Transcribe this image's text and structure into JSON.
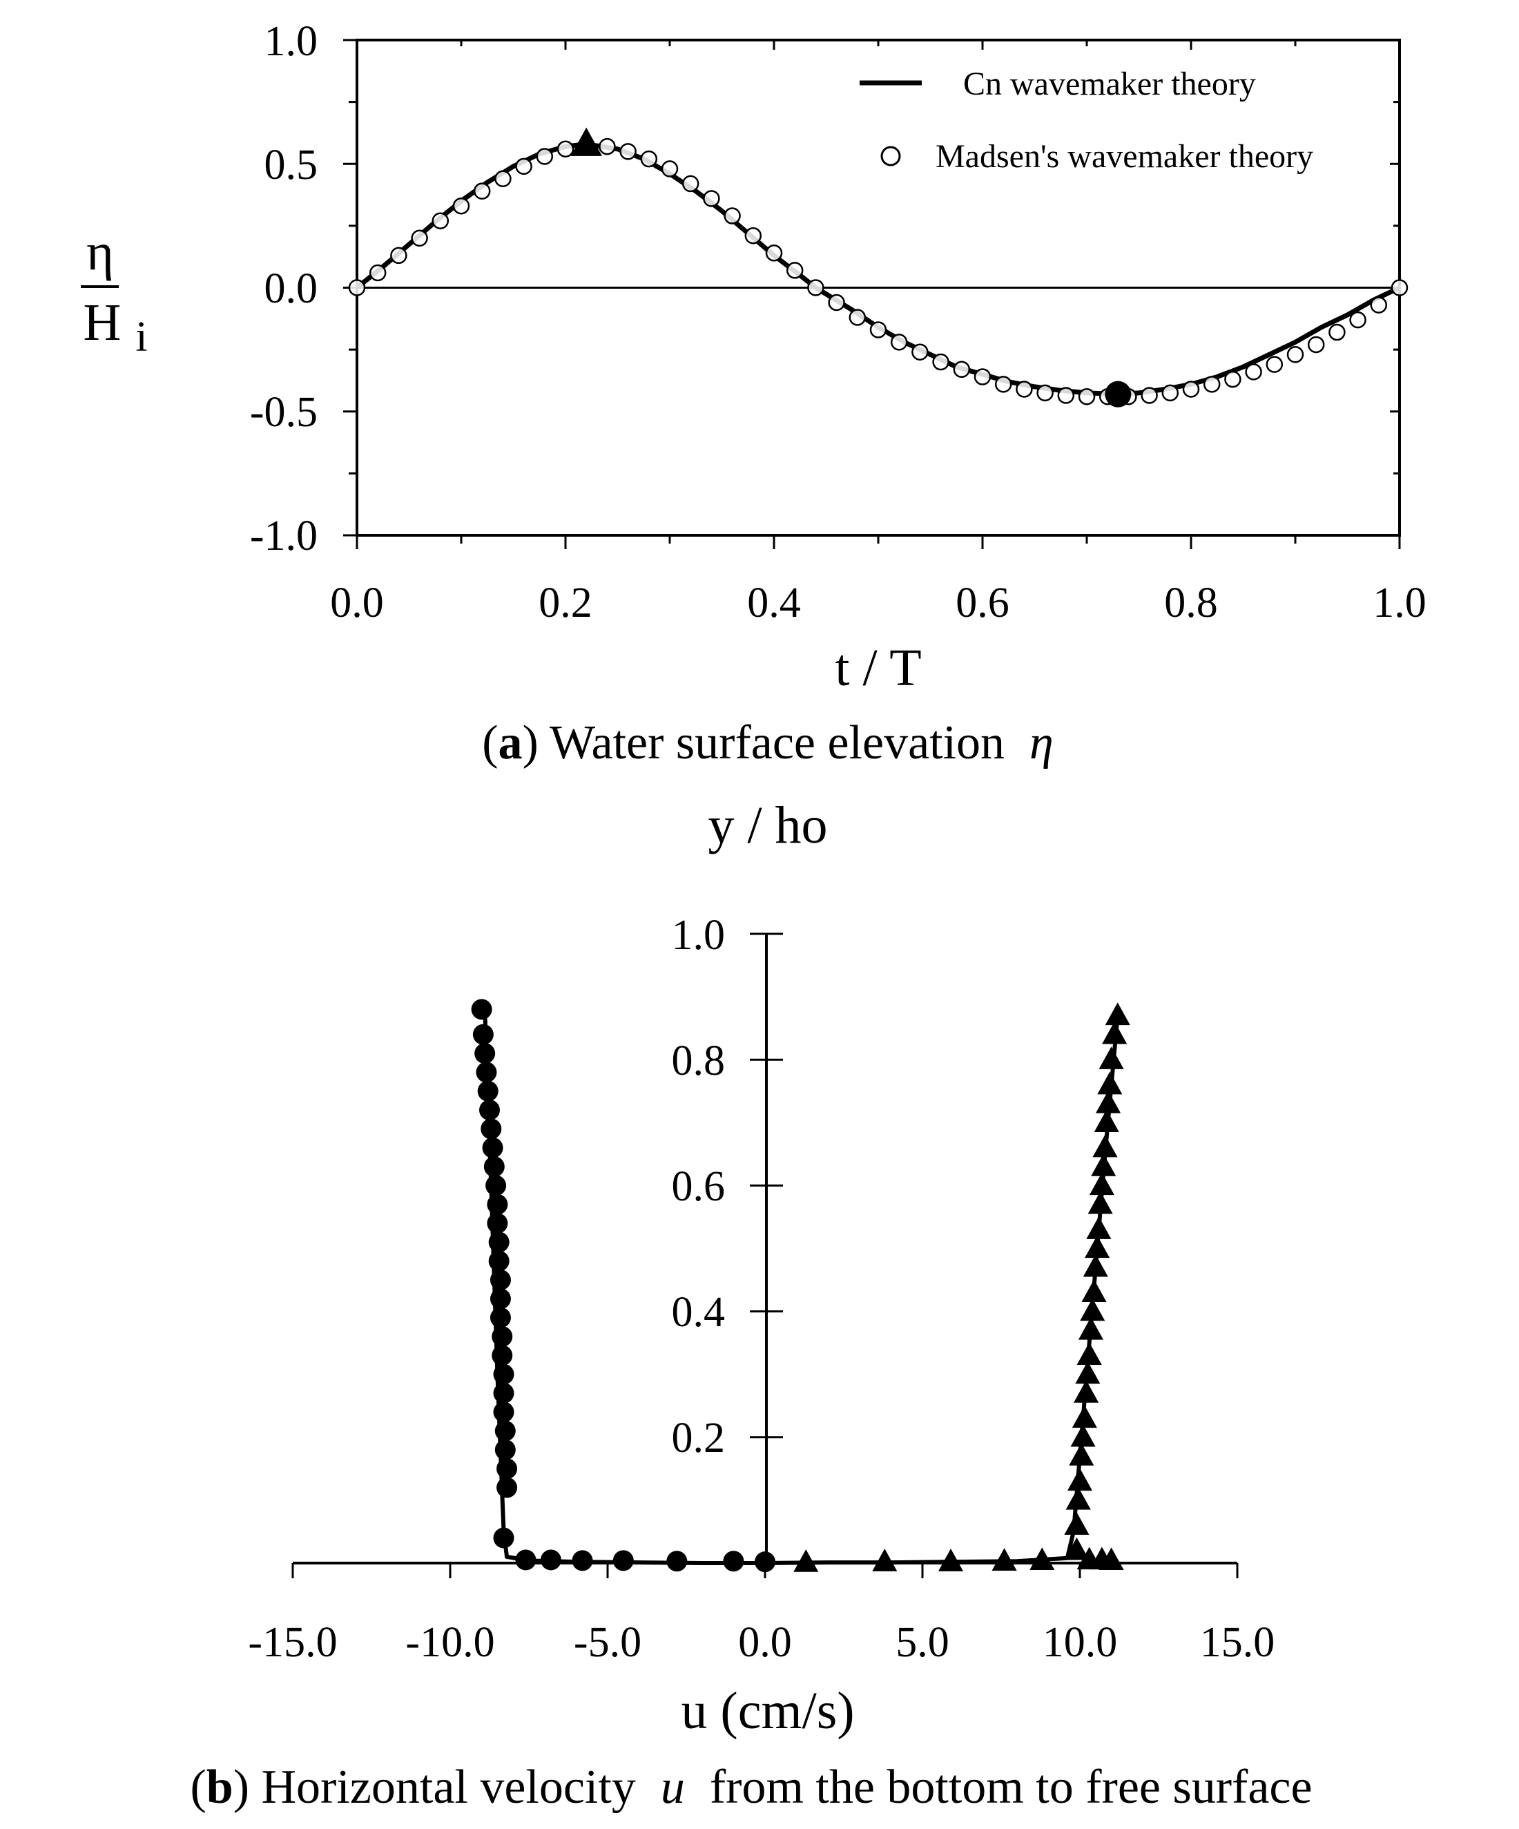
{
  "chart_data": [
    {
      "type": "line",
      "panel": "a",
      "caption": {
        "label": "a",
        "text": ") Water surface elevation",
        "symbol": "η"
      },
      "xlabel": "t / T",
      "ylabel": {
        "top": "η",
        "bottom": "H",
        "subscript": "i"
      },
      "xlim": [
        0,
        1
      ],
      "ylim": [
        -1,
        1
      ],
      "x_ticks": [
        "0.0",
        "0.2",
        "0.4",
        "0.6",
        "0.8",
        "1.0"
      ],
      "y_ticks": [
        "1.0",
        "0.5",
        "0.0",
        "-0.5",
        "-1.0"
      ],
      "zero_line": true,
      "legend": {
        "position": "top-right",
        "entries": [
          {
            "name": "Cn wavemaker theory",
            "style": "solid-line"
          },
          {
            "name": "Madsen's wavemaker theory",
            "style": "open-circle"
          }
        ]
      },
      "series": [
        {
          "name": "Cn wavemaker theory",
          "style": "line",
          "x": [
            0.0,
            0.025,
            0.05,
            0.075,
            0.1,
            0.125,
            0.15,
            0.175,
            0.2,
            0.22,
            0.25,
            0.275,
            0.3,
            0.325,
            0.35,
            0.375,
            0.4,
            0.425,
            0.44,
            0.475,
            0.5,
            0.525,
            0.55,
            0.575,
            0.6,
            0.625,
            0.65,
            0.675,
            0.7,
            0.73,
            0.75,
            0.775,
            0.8,
            0.825,
            0.85,
            0.875,
            0.9,
            0.925,
            0.95,
            0.975,
            1.0
          ],
          "y": [
            0.0,
            0.085,
            0.175,
            0.265,
            0.35,
            0.425,
            0.49,
            0.54,
            0.57,
            0.58,
            0.56,
            0.52,
            0.46,
            0.39,
            0.31,
            0.22,
            0.13,
            0.05,
            0.0,
            -0.09,
            -0.16,
            -0.22,
            -0.27,
            -0.32,
            -0.35,
            -0.38,
            -0.4,
            -0.415,
            -0.425,
            -0.43,
            -0.425,
            -0.41,
            -0.39,
            -0.36,
            -0.32,
            -0.27,
            -0.22,
            -0.16,
            -0.11,
            -0.05,
            0.0
          ]
        },
        {
          "name": "Madsen's wavemaker theory",
          "style": "open-circle",
          "x": [
            0.0,
            0.02,
            0.04,
            0.06,
            0.08,
            0.1,
            0.12,
            0.14,
            0.16,
            0.18,
            0.2,
            0.22,
            0.24,
            0.26,
            0.28,
            0.3,
            0.32,
            0.34,
            0.36,
            0.38,
            0.4,
            0.42,
            0.44,
            0.46,
            0.48,
            0.5,
            0.52,
            0.54,
            0.56,
            0.58,
            0.6,
            0.62,
            0.64,
            0.66,
            0.68,
            0.7,
            0.72,
            0.74,
            0.76,
            0.78,
            0.8,
            0.82,
            0.84,
            0.86,
            0.88,
            0.9,
            0.92,
            0.94,
            0.96,
            0.98,
            1.0
          ],
          "y": [
            0.0,
            0.06,
            0.13,
            0.2,
            0.27,
            0.33,
            0.39,
            0.44,
            0.49,
            0.53,
            0.56,
            0.575,
            0.57,
            0.55,
            0.52,
            0.48,
            0.42,
            0.36,
            0.29,
            0.21,
            0.14,
            0.07,
            0.0,
            -0.06,
            -0.12,
            -0.17,
            -0.22,
            -0.26,
            -0.3,
            -0.33,
            -0.36,
            -0.39,
            -0.41,
            -0.425,
            -0.435,
            -0.44,
            -0.44,
            -0.44,
            -0.435,
            -0.425,
            -0.41,
            -0.39,
            -0.37,
            -0.34,
            -0.31,
            -0.27,
            -0.23,
            -0.18,
            -0.13,
            -0.07,
            0.0
          ]
        }
      ],
      "markers": [
        {
          "name": "crest",
          "shape": "filled-triangle",
          "x": 0.22,
          "y": 0.58
        },
        {
          "name": "trough",
          "shape": "filled-circle",
          "x": 0.73,
          "y": -0.43
        }
      ]
    },
    {
      "type": "line",
      "panel": "b",
      "caption": {
        "label": "b",
        "text": ") Horizontal velocity",
        "symbol": "u",
        "suffix": "from the bottom to free surface"
      },
      "xlabel": "u (cm/s)",
      "ylabel": "y / ho",
      "xlim": [
        -15,
        15
      ],
      "ylim": [
        0,
        1
      ],
      "x_ticks": [
        "-15.0",
        "-10.0",
        "-5.0",
        "0.0",
        "5.0",
        "10.0",
        "15.0"
      ],
      "y_ticks": [
        "1.0",
        "0.8",
        "0.6",
        "0.4",
        "0.2"
      ],
      "series": [
        {
          "name": "trough velocity profile (line)",
          "style": "line",
          "x": [
            0.0,
            -2.0,
            -4.0,
            -6.0,
            -7.5,
            -8.2,
            -8.3,
            -8.5,
            -8.7,
            -8.9
          ],
          "y": [
            0.0,
            0.0,
            0.001,
            0.002,
            0.004,
            0.01,
            0.05,
            0.3,
            0.6,
            0.88
          ]
        },
        {
          "name": "crest velocity profile (line)",
          "style": "line",
          "x": [
            0.0,
            2.0,
            4.0,
            6.0,
            8.0,
            9.6,
            9.8,
            10.3,
            10.8,
            11.2
          ],
          "y": [
            0.0,
            0.001,
            0.001,
            0.002,
            0.003,
            0.008,
            0.05,
            0.35,
            0.65,
            0.87
          ]
        },
        {
          "name": "trough velocity profile (filled circles)",
          "style": "filled-circle",
          "x": [
            -9.0,
            -8.95,
            -8.9,
            -8.85,
            -8.8,
            -8.75,
            -8.7,
            -8.65,
            -8.6,
            -8.55,
            -8.5,
            -8.5,
            -8.45,
            -8.45,
            -8.4,
            -8.4,
            -8.4,
            -8.35,
            -8.35,
            -8.3,
            -8.3,
            -8.3,
            -8.25,
            -8.25,
            -8.2,
            -8.2,
            -8.3,
            -7.6,
            -6.8,
            -5.8,
            -4.5,
            -2.8,
            -1.0,
            0.0
          ],
          "y": [
            0.88,
            0.84,
            0.81,
            0.78,
            0.75,
            0.72,
            0.69,
            0.66,
            0.63,
            0.6,
            0.57,
            0.54,
            0.51,
            0.48,
            0.45,
            0.42,
            0.39,
            0.36,
            0.33,
            0.3,
            0.27,
            0.24,
            0.21,
            0.18,
            0.15,
            0.12,
            0.04,
            0.005,
            0.005,
            0.004,
            0.004,
            0.003,
            0.003,
            0.002
          ]
        },
        {
          "name": "crest velocity profile (filled triangles)",
          "style": "filled-triangle",
          "x": [
            11.2,
            11.1,
            11.0,
            10.95,
            10.9,
            10.85,
            10.8,
            10.75,
            10.7,
            10.65,
            10.6,
            10.55,
            10.5,
            10.45,
            10.4,
            10.35,
            10.3,
            10.25,
            10.2,
            10.15,
            10.1,
            10.05,
            10.0,
            9.95,
            9.9,
            9.9,
            10.3,
            10.7,
            11.0,
            8.8,
            7.6,
            5.9,
            3.8,
            1.3
          ],
          "y": [
            0.87,
            0.84,
            0.8,
            0.76,
            0.73,
            0.7,
            0.66,
            0.63,
            0.6,
            0.57,
            0.53,
            0.5,
            0.47,
            0.43,
            0.4,
            0.37,
            0.33,
            0.3,
            0.27,
            0.23,
            0.2,
            0.17,
            0.13,
            0.1,
            0.06,
            0.02,
            0.005,
            0.005,
            0.004,
            0.004,
            0.003,
            0.002,
            0.002,
            0.001
          ]
        }
      ]
    }
  ]
}
